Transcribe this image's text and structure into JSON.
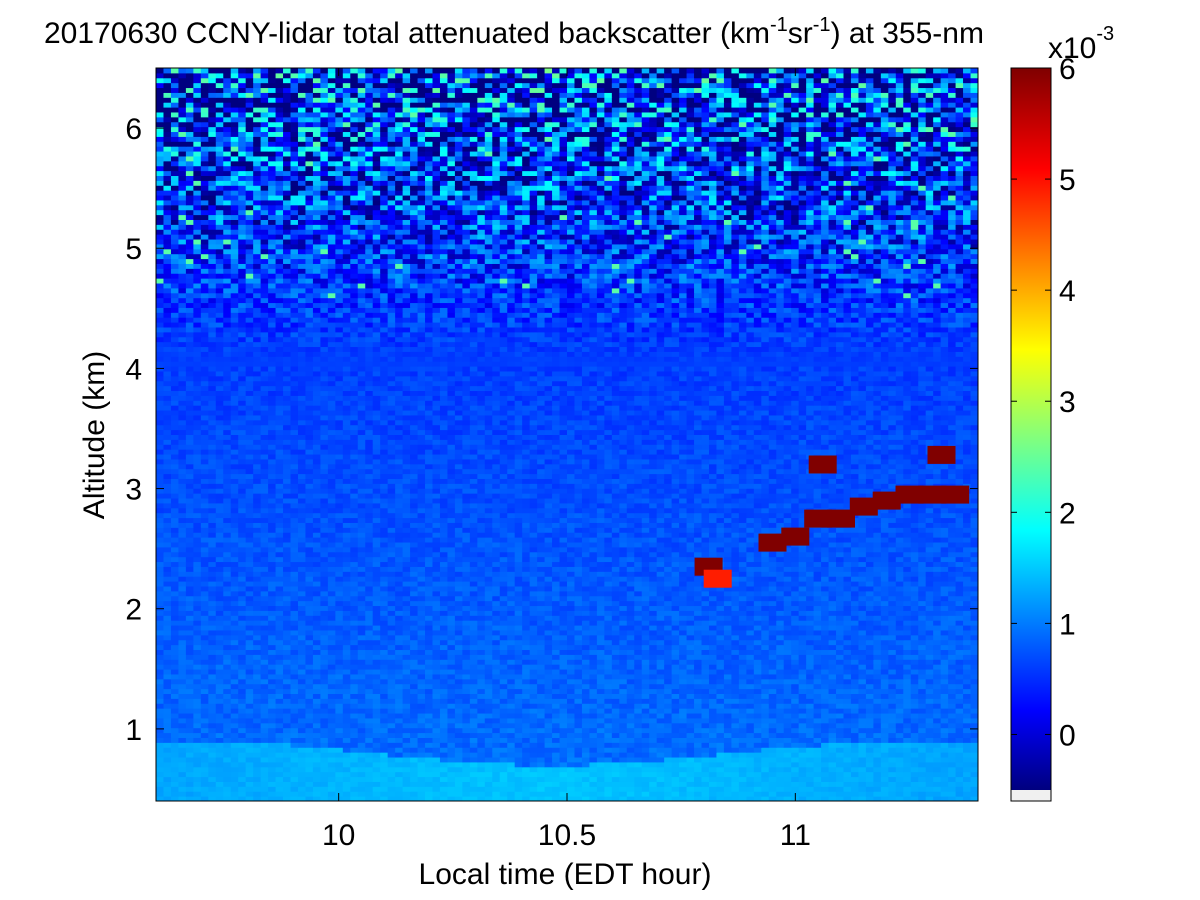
{
  "chart_data": {
    "type": "heatmap",
    "title": {
      "main": "20170630 CCNY-lidar total attenuated backscatter (km",
      "sup1": "-1",
      "mid": "sr",
      "sup2": "-1",
      "end": ") at 355-nm"
    },
    "xlabel": "Local time (EDT hour)",
    "ylabel": "Altitude (km)",
    "xlim": [
      9.6,
      11.4
    ],
    "ylim": [
      0.4,
      6.5
    ],
    "xticks": [
      10,
      10.5,
      11
    ],
    "xtick_labels": [
      "10",
      "10.5",
      "11"
    ],
    "yticks": [
      1,
      2,
      3,
      4,
      5,
      6
    ],
    "ytick_labels": [
      "1",
      "2",
      "3",
      "4",
      "5",
      "6"
    ],
    "colorbar": {
      "clim": [
        -0.5,
        6
      ],
      "ticks": [
        0,
        1,
        2,
        3,
        4,
        5,
        6
      ],
      "tick_labels": [
        "0",
        "1",
        "2",
        "3",
        "4",
        "5",
        "6"
      ],
      "multiplier_base": "x10",
      "multiplier_exp": "-3",
      "colormap": "jet"
    },
    "features": {
      "background_low": 0.5,
      "surface_layer_top_km": 0.8,
      "surface_layer_value": 1.5,
      "noise_increase_above_km": 4.0,
      "cloud_layer": [
        {
          "time": 10.81,
          "alt": 2.35,
          "value": 6
        },
        {
          "time": 10.83,
          "alt": 2.25,
          "value": 5
        },
        {
          "time": 10.95,
          "alt": 2.55,
          "value": 6
        },
        {
          "time": 11.0,
          "alt": 2.6,
          "value": 6
        },
        {
          "time": 11.05,
          "alt": 2.75,
          "value": 6
        },
        {
          "time": 11.1,
          "alt": 2.75,
          "value": 6
        },
        {
          "time": 11.15,
          "alt": 2.85,
          "value": 6
        },
        {
          "time": 11.2,
          "alt": 2.9,
          "value": 6
        },
        {
          "time": 11.25,
          "alt": 2.95,
          "value": 6
        },
        {
          "time": 11.3,
          "alt": 2.95,
          "value": 6
        },
        {
          "time": 11.35,
          "alt": 2.95,
          "value": 6
        },
        {
          "time": 11.06,
          "alt": 3.2,
          "value": 6
        },
        {
          "time": 11.32,
          "alt": 3.28,
          "value": 6
        }
      ]
    }
  }
}
